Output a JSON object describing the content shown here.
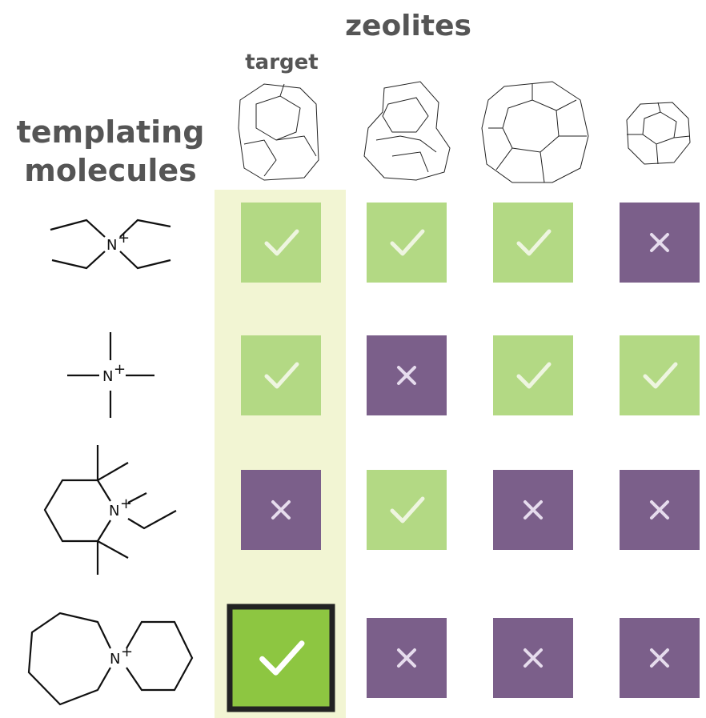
{
  "header": {
    "title": "zeolites",
    "target_label": "target",
    "row_title": [
      "templating",
      "molecules"
    ]
  },
  "molecules": [
    {
      "atom": "N",
      "charge": "+"
    },
    {
      "atom": "N",
      "charge": "+"
    },
    {
      "atom": "N",
      "charge": "+"
    },
    {
      "atom": "N",
      "charge": "+"
    }
  ],
  "results": [
    [
      true,
      true,
      true,
      false
    ],
    [
      true,
      false,
      true,
      true
    ],
    [
      false,
      true,
      false,
      false
    ],
    [
      true,
      false,
      false,
      false
    ]
  ]
}
